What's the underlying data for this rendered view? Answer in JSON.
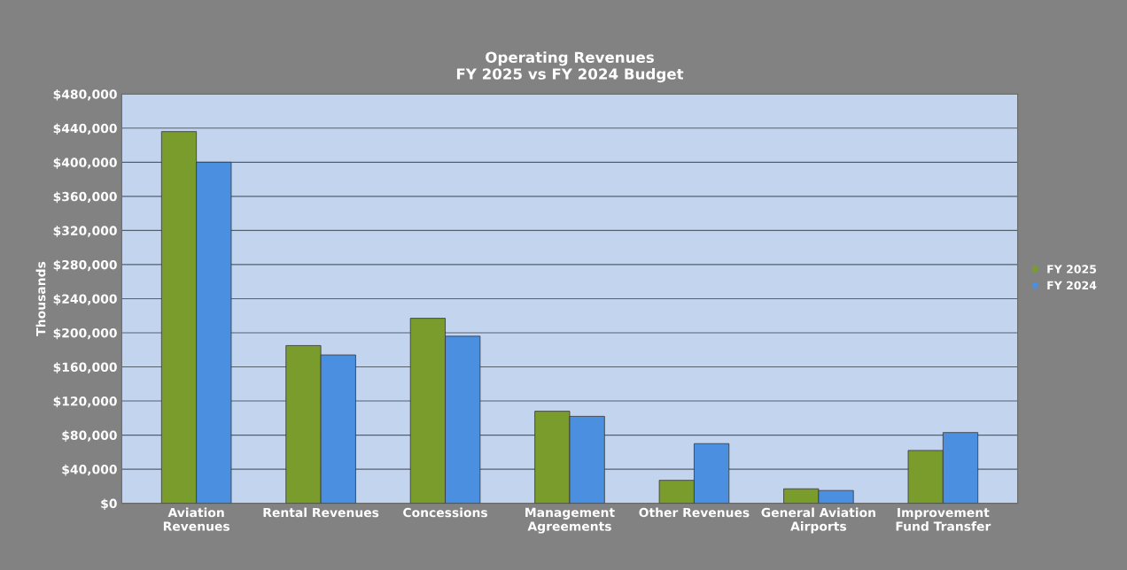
{
  "chart_data": {
    "type": "bar",
    "title": "Operating Revenues\nFY 2025 vs FY 2024 Budget",
    "ylabel": "Thousands",
    "categories": [
      "Aviation\nRevenues",
      "Rental Revenues",
      "Concessions",
      "Management\nAgreements",
      "Other Revenues",
      "General Aviation\nAirports",
      "Improvement\nFund Transfer"
    ],
    "series": [
      {
        "name": "FY 2025",
        "color": "#7a9c2c",
        "values": [
          436000,
          185000,
          217000,
          108000,
          27000,
          17000,
          62000
        ]
      },
      {
        "name": "FY 2024",
        "color": "#4a8fe0",
        "values": [
          400000,
          174000,
          196000,
          102000,
          70000,
          15000,
          83000
        ]
      }
    ],
    "ylim": [
      0,
      480000
    ],
    "yticks": [
      {
        "value": 0,
        "label": "$0"
      },
      {
        "value": 40000,
        "label": "$40,000"
      },
      {
        "value": 80000,
        "label": "$80,000"
      },
      {
        "value": 120000,
        "label": "$120,000"
      },
      {
        "value": 160000,
        "label": "$160,000"
      },
      {
        "value": 200000,
        "label": "$200,000"
      },
      {
        "value": 240000,
        "label": "$240,000"
      },
      {
        "value": 280000,
        "label": "$280,000"
      },
      {
        "value": 320000,
        "label": "$320,000"
      },
      {
        "value": 360000,
        "label": "$360,000"
      },
      {
        "value": 400000,
        "label": "$400,000"
      },
      {
        "value": 440000,
        "label": "$440,000"
      },
      {
        "value": 480000,
        "label": "$480,000"
      }
    ],
    "grid": "y",
    "legend": "right"
  }
}
